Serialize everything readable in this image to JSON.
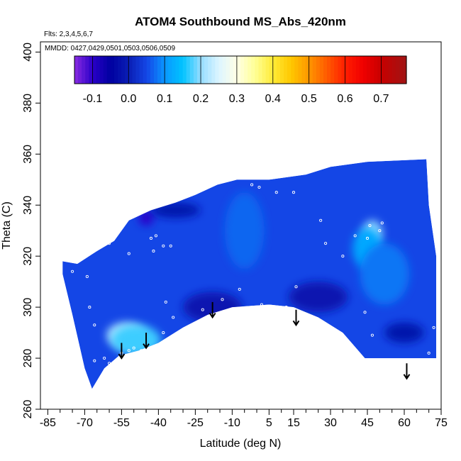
{
  "chart_data": {
    "type": "heatmap",
    "title": "ATOM4 Southbound MS_Abs_420nm",
    "annotations": [
      "Flts: 2,3,4,5,6,7",
      "MMDD: 0427,0429,0501,0503,0506,0509"
    ],
    "xlabel": "Latitude (deg N)",
    "ylabel": "Theta (C)",
    "xlim": [
      -88,
      75
    ],
    "ylim": [
      260,
      404
    ],
    "xticks": [
      -85,
      -70,
      -55,
      -40,
      -25,
      -10,
      5,
      15,
      30,
      45,
      60,
      75
    ],
    "xminor_ticks": [
      -80,
      -75,
      -65,
      -60,
      -50,
      -45,
      -35,
      -30,
      -20,
      -15,
      -5,
      0,
      10,
      20,
      25,
      35,
      40,
      50,
      55,
      65,
      70
    ],
    "yticks": [
      260,
      280,
      300,
      320,
      340,
      360,
      380,
      400
    ],
    "colorbar": {
      "range": [
        -0.15,
        0.77
      ],
      "ticks": [
        -0.1,
        0.0,
        0.1,
        0.2,
        0.3,
        0.4,
        0.5,
        0.6,
        0.7
      ],
      "tick_labels": [
        "-0.1",
        "0.0",
        "0.1",
        "0.2",
        "0.3",
        "0.4",
        "0.5",
        "0.6",
        "0.7"
      ],
      "stops": [
        {
          "value": -0.15,
          "color": "#8a2be2"
        },
        {
          "value": -0.1,
          "color": "#2a00c8"
        },
        {
          "value": -0.05,
          "color": "#0000a0"
        },
        {
          "value": 0.0,
          "color": "#0a1eb4"
        },
        {
          "value": 0.05,
          "color": "#1446e6"
        },
        {
          "value": 0.1,
          "color": "#0a96ff"
        },
        {
          "value": 0.15,
          "color": "#00c3ff"
        },
        {
          "value": 0.2,
          "color": "#96dcff"
        },
        {
          "value": 0.25,
          "color": "#dcf5ff"
        },
        {
          "value": 0.3,
          "color": "#ffffe6"
        },
        {
          "value": 0.35,
          "color": "#ffff96"
        },
        {
          "value": 0.4,
          "color": "#ffeb37"
        },
        {
          "value": 0.45,
          "color": "#ffc800"
        },
        {
          "value": 0.5,
          "color": "#ff9600"
        },
        {
          "value": 0.55,
          "color": "#ff5a00"
        },
        {
          "value": 0.6,
          "color": "#ff1e00"
        },
        {
          "value": 0.65,
          "color": "#f00000"
        },
        {
          "value": 0.7,
          "color": "#c80000"
        },
        {
          "value": 0.77,
          "color": "#a01414"
        }
      ]
    },
    "field_outline": [
      [
        -73,
        317
      ],
      [
        -65,
        322
      ],
      [
        -58,
        326
      ],
      [
        -52,
        334
      ],
      [
        -43,
        338
      ],
      [
        -33,
        341
      ],
      [
        -25,
        344
      ],
      [
        -16,
        348
      ],
      [
        -8,
        350
      ],
      [
        5,
        350
      ],
      [
        20,
        352
      ],
      [
        30,
        355
      ],
      [
        45,
        357
      ],
      [
        69,
        358
      ],
      [
        70,
        340
      ],
      [
        73,
        320
      ],
      [
        73,
        300
      ],
      [
        73,
        280
      ],
      [
        60,
        280
      ],
      [
        50,
        280
      ],
      [
        44,
        280
      ],
      [
        35,
        290
      ],
      [
        25,
        296
      ],
      [
        15,
        300
      ],
      [
        5,
        301
      ],
      [
        -10,
        300
      ],
      [
        -20,
        297
      ],
      [
        -30,
        292
      ],
      [
        -40,
        286
      ],
      [
        -48,
        283
      ],
      [
        -56,
        281
      ],
      [
        -62,
        276
      ],
      [
        -67,
        268
      ],
      [
        -70,
        276
      ],
      [
        -75,
        297
      ],
      [
        -79,
        313
      ],
      [
        -79,
        318
      ]
    ],
    "background_value": 0.05,
    "features": [
      {
        "lat": -53,
        "theta": 289,
        "value": 0.22,
        "radius_lat": 8,
        "radius_theta": 5
      },
      {
        "lat": -49,
        "theta": 287,
        "value": 0.17,
        "radius_lat": 10,
        "radius_theta": 6
      },
      {
        "lat": 47,
        "theta": 329,
        "value": 0.2,
        "radius_lat": 4,
        "radius_theta": 5
      },
      {
        "lat": 45,
        "theta": 323,
        "value": 0.12,
        "radius_lat": 6,
        "radius_theta": 8
      },
      {
        "lat": 52,
        "theta": 313,
        "value": 0.08,
        "radius_lat": 10,
        "radius_theta": 12
      },
      {
        "lat": -45,
        "theta": 335,
        "value": -0.1,
        "radius_lat": 3,
        "radius_theta": 3
      },
      {
        "lat": -33,
        "theta": 338,
        "value": -0.02,
        "radius_lat": 10,
        "radius_theta": 3
      },
      {
        "lat": -18,
        "theta": 300,
        "value": -0.01,
        "radius_lat": 12,
        "radius_theta": 6
      },
      {
        "lat": 25,
        "theta": 304,
        "value": -0.01,
        "radius_lat": 12,
        "radius_theta": 6
      },
      {
        "lat": 60,
        "theta": 290,
        "value": -0.02,
        "radius_lat": 8,
        "radius_theta": 4
      },
      {
        "lat": -5,
        "theta": 330,
        "value": 0.07,
        "radius_lat": 8,
        "radius_theta": 15
      }
    ],
    "sample_points": [
      [
        -65,
        325
      ],
      [
        -66,
        323
      ],
      [
        -63,
        324
      ],
      [
        -60,
        325
      ],
      [
        -52,
        321
      ],
      [
        -43,
        327
      ],
      [
        -41,
        328
      ],
      [
        -38,
        324
      ],
      [
        -42,
        322
      ],
      [
        -35,
        324
      ],
      [
        -68,
        300
      ],
      [
        -66,
        293
      ],
      [
        -62,
        280
      ],
      [
        -60,
        278
      ],
      [
        -61,
        275
      ],
      [
        -55,
        282
      ],
      [
        -52,
        283
      ],
      [
        -50,
        284
      ],
      [
        -47,
        283
      ],
      [
        -37,
        302
      ],
      [
        -34,
        296
      ],
      [
        -42,
        284
      ],
      [
        -38,
        290
      ],
      [
        -22,
        299
      ],
      [
        -14,
        303
      ],
      [
        -7,
        307
      ],
      [
        -2,
        348
      ],
      [
        1,
        347
      ],
      [
        8,
        345
      ],
      [
        15,
        345
      ],
      [
        2,
        301
      ],
      [
        12,
        300
      ],
      [
        16,
        308
      ],
      [
        18,
        297
      ],
      [
        23,
        294
      ],
      [
        26,
        334
      ],
      [
        28,
        325
      ],
      [
        35,
        320
      ],
      [
        40,
        328
      ],
      [
        45,
        327
      ],
      [
        50,
        330
      ],
      [
        46,
        332
      ],
      [
        51,
        333
      ],
      [
        44,
        298
      ],
      [
        47,
        289
      ],
      [
        72,
        292
      ],
      [
        70,
        282
      ],
      [
        -75,
        314
      ],
      [
        -69,
        312
      ],
      [
        -66,
        279
      ]
    ],
    "arrows": [
      {
        "lat": -55,
        "theta_top": 286,
        "theta_tip": 280
      },
      {
        "lat": -45,
        "theta_top": 290,
        "theta_tip": 284
      },
      {
        "lat": -18,
        "theta_top": 302,
        "theta_tip": 296
      },
      {
        "lat": 16,
        "theta_top": 299,
        "theta_tip": 293
      },
      {
        "lat": 61,
        "theta_top": 278,
        "theta_tip": 272
      }
    ]
  }
}
